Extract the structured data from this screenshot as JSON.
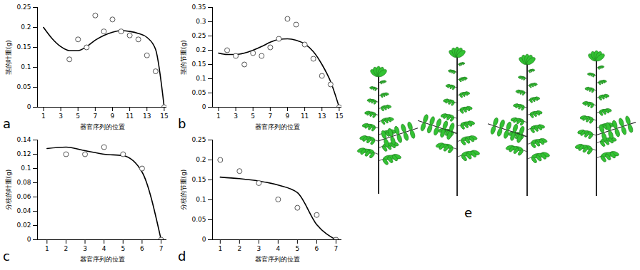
{
  "chart_data": [
    {
      "type": "line",
      "panel_label": "a",
      "x_label": "器官序列的位置",
      "y_label": "茎的叶重(g)",
      "xlim": [
        0.3,
        15.3
      ],
      "xticks": [
        1,
        3,
        5,
        7,
        9,
        11,
        13,
        15
      ],
      "ylim": [
        0,
        0.25
      ],
      "yticks": [
        0,
        0.05,
        0.1,
        0.15,
        0.2,
        0.25
      ],
      "series": [
        {
          "type": "line",
          "color": "#000000",
          "x": [
            1,
            2,
            3,
            4,
            5,
            6,
            7,
            8,
            9,
            10,
            11,
            12,
            13,
            14,
            15
          ],
          "values": [
            0.2,
            0.172,
            0.152,
            0.142,
            0.142,
            0.152,
            0.168,
            0.18,
            0.188,
            0.192,
            0.19,
            0.185,
            0.175,
            0.145,
            0
          ]
        },
        {
          "type": "scatter",
          "marker": "circle",
          "color": "#555555",
          "x": [
            4,
            5,
            6,
            7,
            8,
            9,
            10,
            11,
            12,
            13,
            14,
            15
          ],
          "values": [
            0.12,
            0.17,
            0.15,
            0.23,
            0.19,
            0.22,
            0.19,
            0.18,
            0.17,
            0.13,
            0.09,
            0
          ]
        }
      ]
    },
    {
      "type": "line",
      "panel_label": "b",
      "x_label": "器官序列的位置",
      "y_label": "茎的节重(g)",
      "xlim": [
        0.3,
        15.3
      ],
      "xticks": [
        1,
        3,
        5,
        7,
        9,
        11,
        13,
        15
      ],
      "ylim": [
        0,
        0.35
      ],
      "yticks": [
        0,
        0.05,
        0.1,
        0.15,
        0.2,
        0.25,
        0.3,
        0.35
      ],
      "series": [
        {
          "type": "line",
          "color": "#000000",
          "x": [
            1,
            2,
            3,
            4,
            5,
            6,
            7,
            8,
            9,
            10,
            11,
            12,
            13,
            14,
            15
          ],
          "values": [
            0.19,
            0.185,
            0.185,
            0.19,
            0.2,
            0.213,
            0.228,
            0.238,
            0.24,
            0.235,
            0.222,
            0.195,
            0.15,
            0.09,
            0
          ]
        },
        {
          "type": "scatter",
          "marker": "circle",
          "color": "#555555",
          "x": [
            2,
            3,
            4,
            5,
            6,
            7,
            8,
            9,
            10,
            11,
            12,
            13,
            14,
            15
          ],
          "values": [
            0.2,
            0.18,
            0.15,
            0.19,
            0.18,
            0.21,
            0.24,
            0.31,
            0.29,
            0.22,
            0.17,
            0.11,
            0.08,
            0
          ]
        }
      ]
    },
    {
      "type": "line",
      "panel_label": "c",
      "x_label": "器官序列的位置",
      "y_label": "分枝的叶重(g)",
      "xlim": [
        0.5,
        7.3
      ],
      "xticks": [
        1,
        2,
        3,
        4,
        5,
        6,
        7
      ],
      "ylim": [
        0,
        0.14
      ],
      "yticks": [
        0,
        0.02,
        0.04,
        0.06,
        0.08,
        0.1,
        0.12,
        0.14
      ],
      "series": [
        {
          "type": "line",
          "color": "#000000",
          "x": [
            1,
            2,
            3,
            4,
            5,
            6,
            7
          ],
          "values": [
            0.128,
            0.13,
            0.125,
            0.12,
            0.118,
            0.095,
            0
          ]
        },
        {
          "type": "scatter",
          "marker": "circle",
          "color": "#555555",
          "x": [
            2,
            3,
            4,
            5,
            6,
            7
          ],
          "values": [
            0.12,
            0.12,
            0.13,
            0.12,
            0.1,
            0
          ]
        }
      ]
    },
    {
      "type": "line",
      "panel_label": "d",
      "x_label": "器官序列的位置",
      "y_label": "分枝的节重(g)",
      "xlim": [
        0.6,
        7.3
      ],
      "xticks": [
        1,
        2,
        3,
        4,
        5,
        6,
        7
      ],
      "ylim": [
        0,
        0.25
      ],
      "yticks": [
        0,
        0.05,
        0.1,
        0.15,
        0.2,
        0.25
      ],
      "series": [
        {
          "type": "line",
          "color": "#000000",
          "x": [
            1,
            2,
            3,
            4,
            5,
            6,
            7
          ],
          "values": [
            0.157,
            0.153,
            0.147,
            0.137,
            0.118,
            0.038,
            0
          ]
        },
        {
          "type": "scatter",
          "marker": "circle",
          "color": "#555555",
          "x": [
            1,
            2,
            3,
            4,
            5,
            6,
            7
          ],
          "values": [
            0.2,
            0.172,
            0.142,
            0.101,
            0.08,
            0.062,
            0
          ]
        }
      ]
    }
  ],
  "panel_e": {
    "label": "e"
  }
}
